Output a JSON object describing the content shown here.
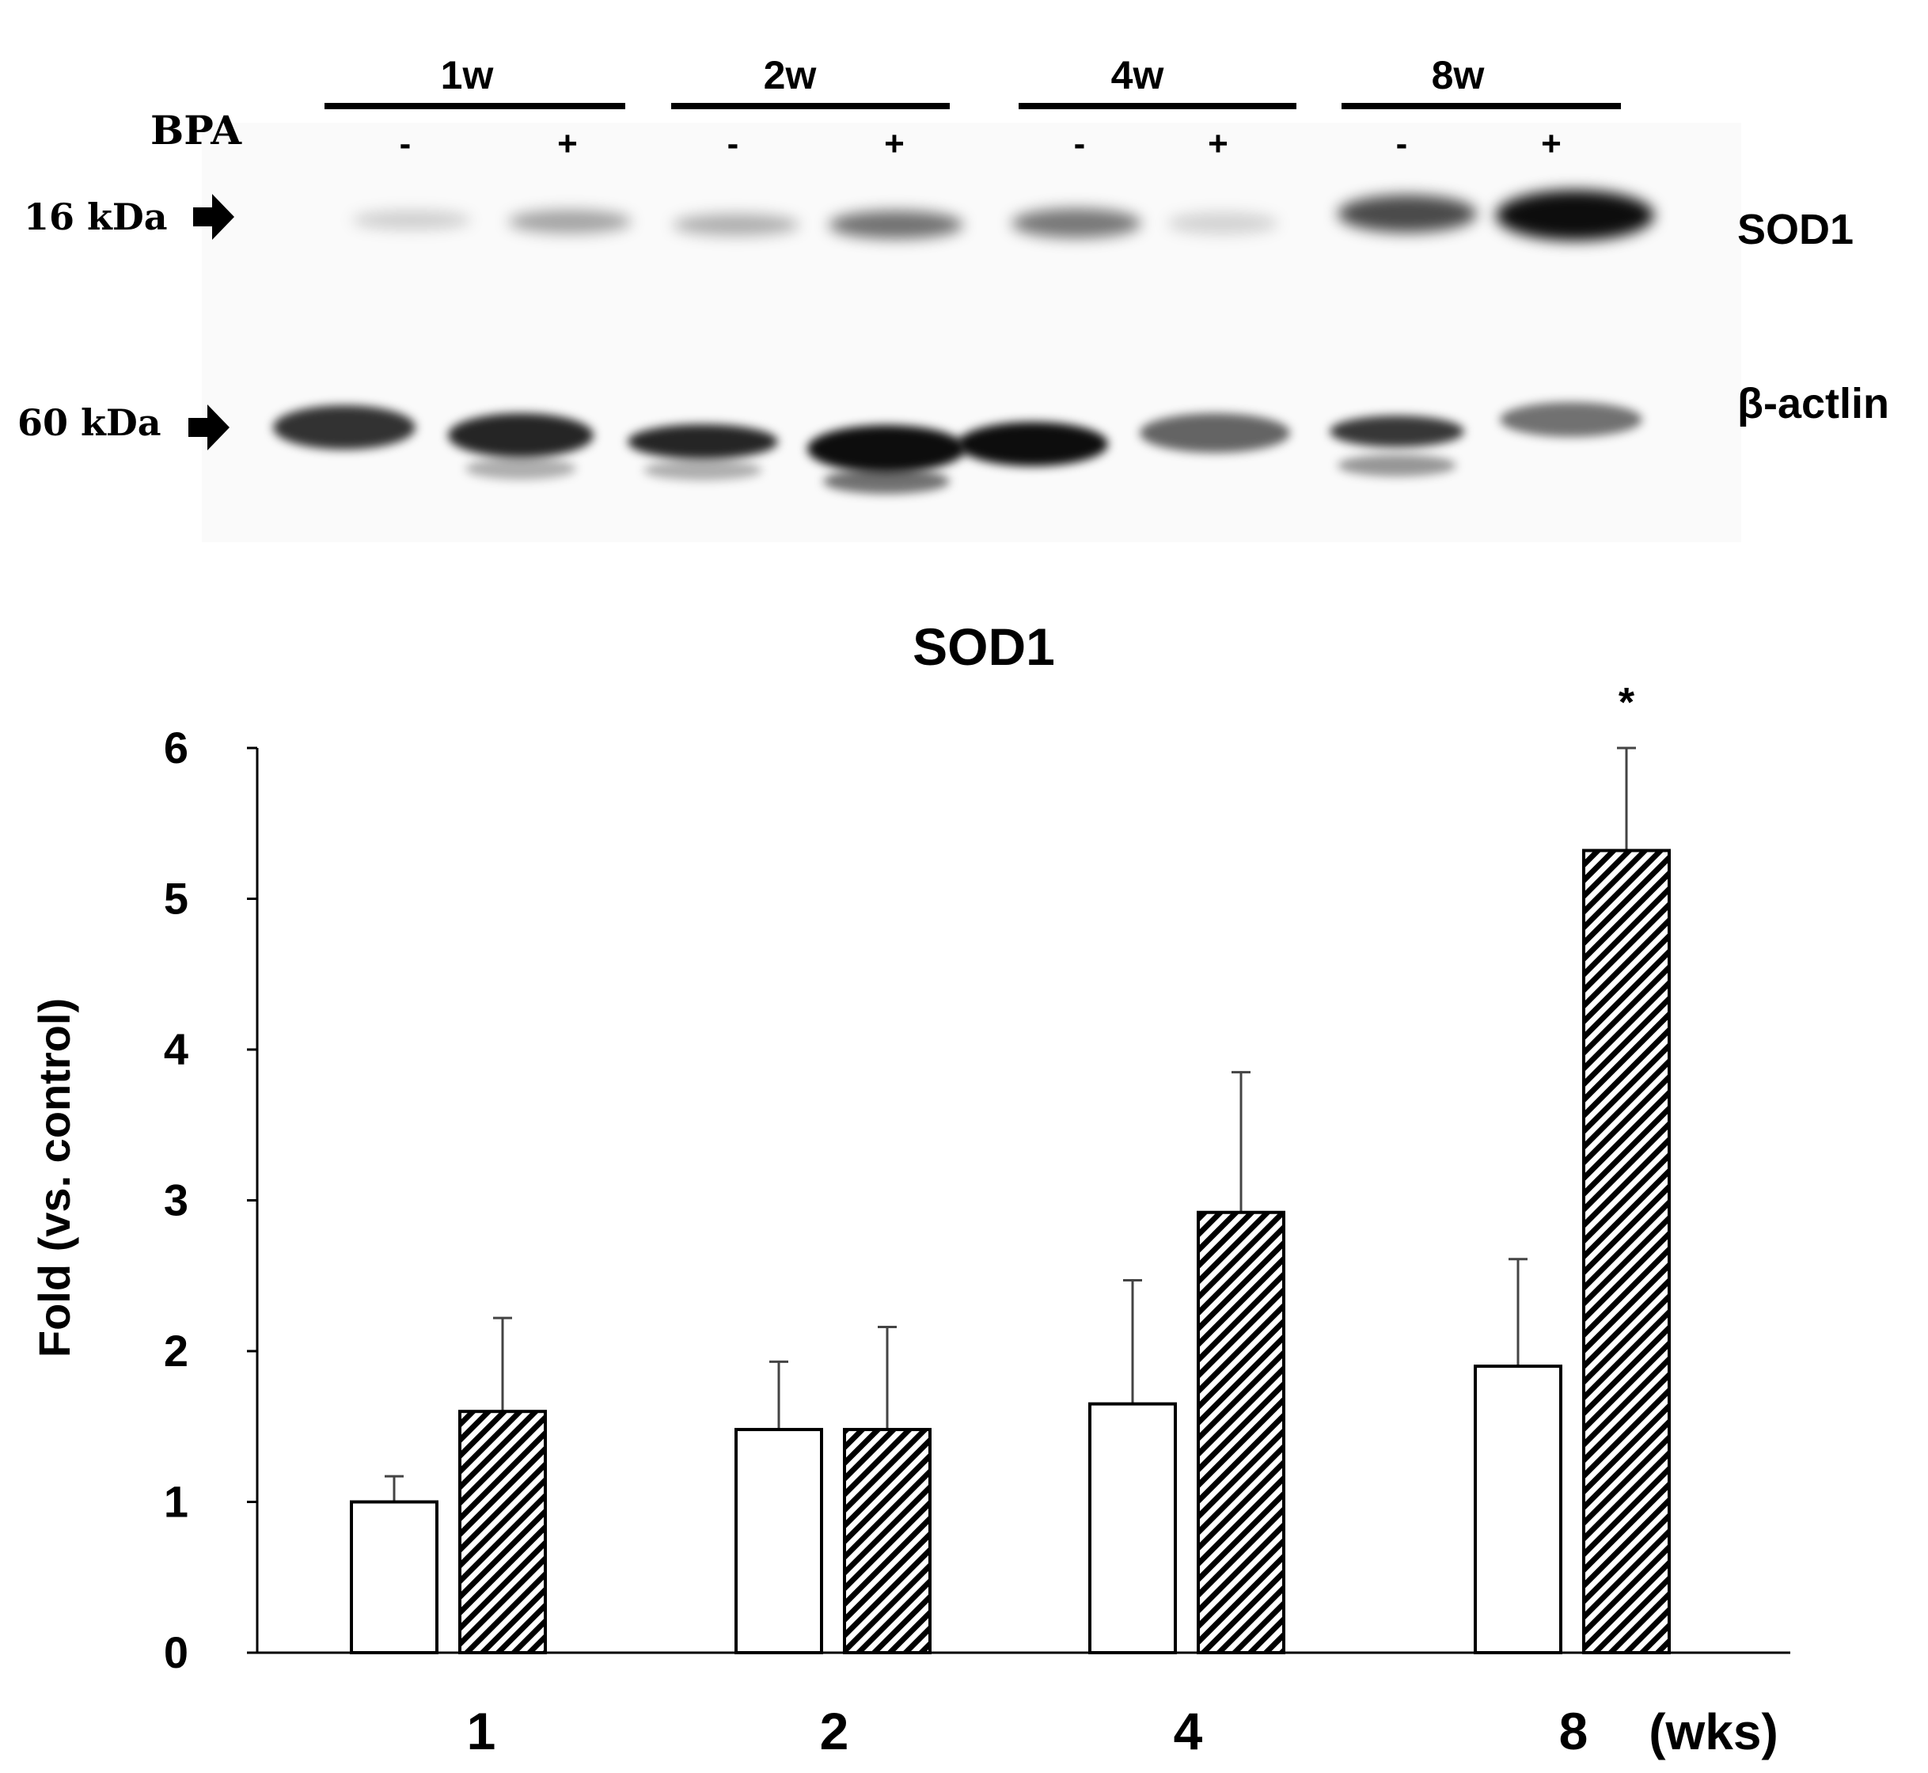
{
  "blot": {
    "treatment_label": "BPA",
    "groups": [
      {
        "label": "1w",
        "lanes": [
          "-",
          "+"
        ]
      },
      {
        "label": "2w",
        "lanes": [
          "-",
          "+"
        ]
      },
      {
        "label": "4w",
        "lanes": [
          "-",
          "+"
        ]
      },
      {
        "label": "8w",
        "lanes": [
          "-",
          "+"
        ]
      }
    ],
    "rows": [
      {
        "marker": "16 kDa",
        "protein": "SOD1"
      },
      {
        "marker": "60 kDa",
        "protein": "β-actlin"
      }
    ]
  },
  "chart_data": {
    "type": "bar",
    "title": "SOD1",
    "ylabel": "Fold (vs. control)",
    "xlabel": "",
    "x_unit_label": "(wks)",
    "categories": [
      "1",
      "2",
      "4",
      "8"
    ],
    "ylim": [
      0,
      6
    ],
    "yticks": [
      0,
      1,
      2,
      3,
      4,
      5,
      6
    ],
    "series": [
      {
        "values": [
          1.0,
          1.48,
          1.65,
          1.9
        ],
        "errors": [
          0.17,
          0.45,
          0.82,
          0.71
        ],
        "fill": "#ffffff",
        "pattern": "none"
      },
      {
        "values": [
          1.6,
          1.48,
          2.92,
          5.32
        ],
        "errors": [
          0.62,
          0.68,
          0.93,
          0.68
        ],
        "fill": "hatched",
        "pattern": "diagonal-hatch"
      }
    ],
    "annotations": [
      {
        "category": "8",
        "series": 1,
        "text": "*"
      }
    ],
    "grid": false,
    "colors": {
      "bar_edge": "#000000",
      "hatch": "#000000",
      "axis": "#000000"
    }
  }
}
